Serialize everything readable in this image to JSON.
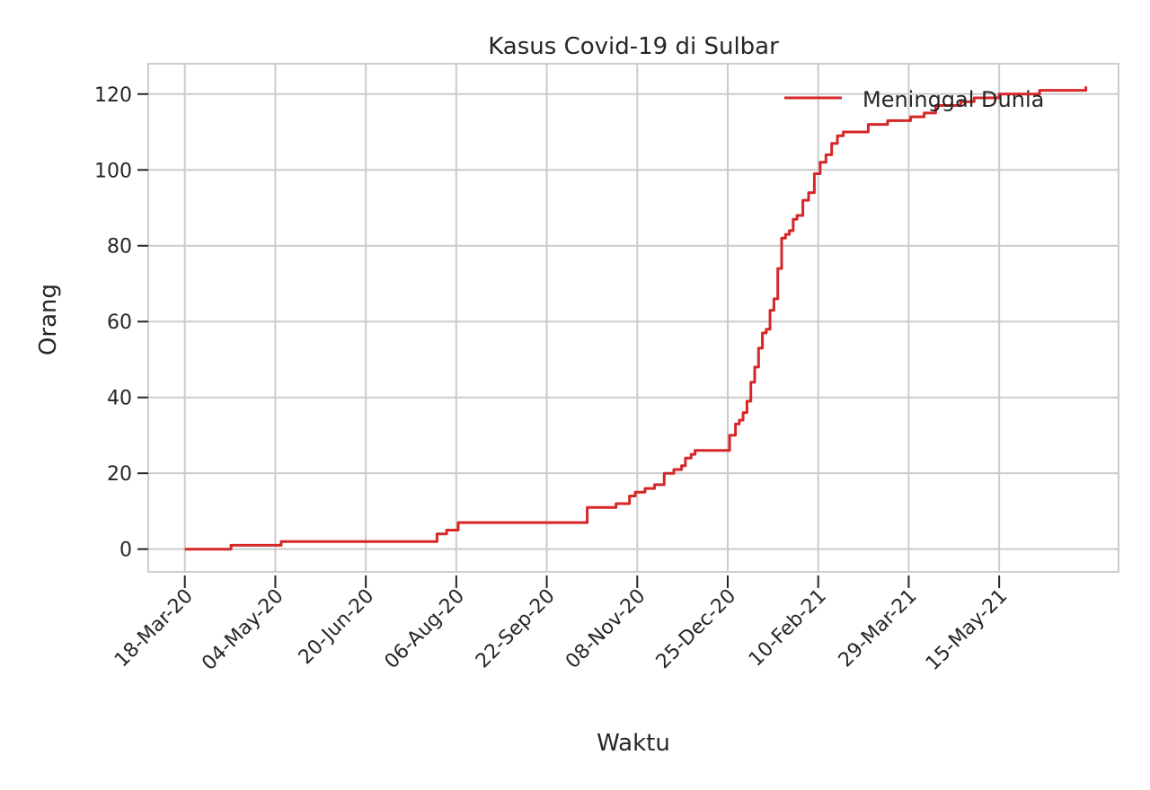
{
  "chart_data": {
    "type": "line",
    "title": "Kasus Covid-19 di Sulbar",
    "xlabel": "Waktu",
    "ylabel": "Orang",
    "x_start": "2020-03-18",
    "x_end": "2021-06-30",
    "xlim": [
      "2020-02-28",
      "2021-07-16"
    ],
    "ylim": [
      -6,
      128
    ],
    "y_ticks": [
      0,
      20,
      40,
      60,
      80,
      100,
      120
    ],
    "x_tick_labels": [
      "18-Mar-20",
      "04-May-20",
      "20-Jun-20",
      "06-Aug-20",
      "22-Sep-20",
      "08-Nov-20",
      "25-Dec-20",
      "10-Feb-21",
      "29-Mar-21",
      "15-May-21"
    ],
    "x_ticks": [
      "2020-03-18",
      "2020-05-04",
      "2020-06-20",
      "2020-08-06",
      "2020-09-22",
      "2020-11-08",
      "2020-12-25",
      "2021-02-10",
      "2021-03-29",
      "2021-05-15"
    ],
    "grid": true,
    "legend_position": "top-right",
    "series": [
      {
        "name": "Meninggal Dunia",
        "color": "#d62728",
        "x": [
          "2020-03-18",
          "2020-04-11",
          "2020-05-07",
          "2020-07-09",
          "2020-07-27",
          "2020-08-01",
          "2020-08-07",
          "2020-09-23",
          "2020-10-13",
          "2020-10-28",
          "2020-11-01",
          "2020-11-04",
          "2020-11-07",
          "2020-11-12",
          "2020-11-17",
          "2020-11-22",
          "2020-11-27",
          "2020-12-01",
          "2020-12-03",
          "2020-12-06",
          "2020-12-08",
          "2020-12-10",
          "2020-12-22",
          "2020-12-26",
          "2020-12-29",
          "2020-12-31",
          "2021-01-02",
          "2021-01-04",
          "2021-01-06",
          "2021-01-08",
          "2021-01-10",
          "2021-01-12",
          "2021-01-14",
          "2021-01-16",
          "2021-01-18",
          "2021-01-20",
          "2021-01-22",
          "2021-01-24",
          "2021-01-26",
          "2021-01-28",
          "2021-01-30",
          "2021-02-02",
          "2021-02-05",
          "2021-02-08",
          "2021-02-11",
          "2021-02-14",
          "2021-02-17",
          "2021-02-20",
          "2021-02-23",
          "2021-02-26",
          "2021-03-01",
          "2021-03-08",
          "2021-03-18",
          "2021-03-30",
          "2021-04-06",
          "2021-04-12",
          "2021-04-18",
          "2021-04-25",
          "2021-05-02",
          "2021-05-15",
          "2021-06-05",
          "2021-06-29"
        ],
        "y": [
          0,
          1,
          2,
          2,
          4,
          5,
          7,
          7,
          11,
          12,
          12,
          14,
          15,
          16,
          17,
          20,
          21,
          22,
          24,
          25,
          26,
          26,
          26,
          30,
          33,
          34,
          36,
          39,
          44,
          48,
          53,
          57,
          58,
          63,
          66,
          74,
          82,
          83,
          84,
          87,
          88,
          92,
          94,
          99,
          102,
          104,
          107,
          109,
          110,
          110,
          110,
          112,
          113,
          114,
          115,
          117,
          117,
          118,
          119,
          120,
          121,
          122
        ]
      }
    ]
  }
}
